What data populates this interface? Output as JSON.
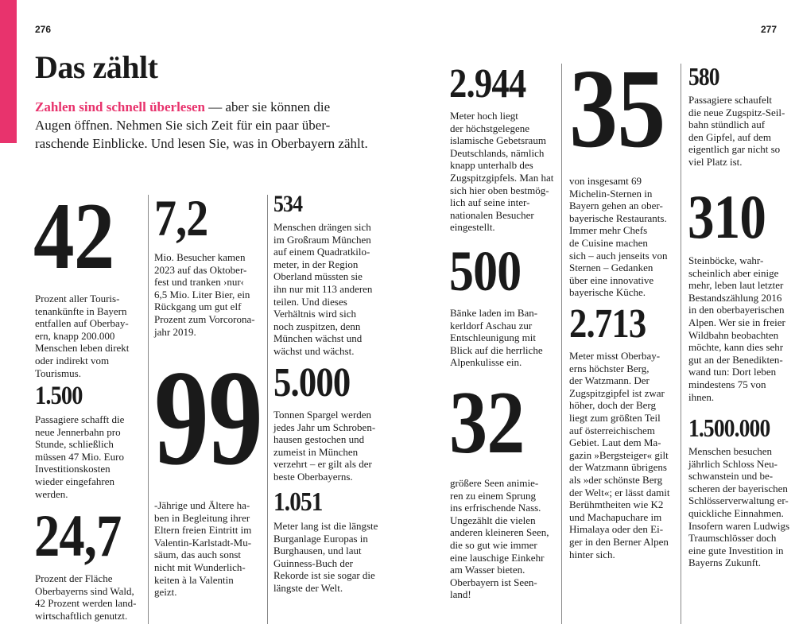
{
  "page_left": "276",
  "page_right": "277",
  "accent_color": "#e8336d",
  "title": "Das zählt",
  "intro": {
    "lead": "Zahlen sind schnell überlesen",
    "rest": " — aber sie können die\nAugen öffnen. Nehmen Sie sich Zeit für ein paar über-\nraschende Einblicke. Und lesen Sie, was in Oberbayern zählt."
  },
  "facts": [
    {
      "number": "42",
      "text": "Prozent aller Touris-\ntenankünfte in Bayern\nentfallen auf Oberbay-\nern, knapp 200.000\nMenschen leben direkt\noder indirekt vom\nTourismus."
    },
    {
      "number": "1.500",
      "text": "Passagiere schafft die\nneue Jennerbahn pro\nStunde, schließlich\nmüssen 47 Mio. Euro\nInvestitionskosten\nwieder eingefahren\nwerden."
    },
    {
      "number": "24,7",
      "text": "Prozent der Fläche\nOberbayerns sind Wald,\n42 Prozent werden land-\nwirtschaftlich genutzt."
    },
    {
      "number": "7,2",
      "text": "Mio. Besucher kamen\n2023 auf das Oktober-\nfest und tranken ›nur‹\n6,5 Mio. Liter Bier, ein\nRückgang um gut elf\nProzent zum Vorcorona-\njahr 2019."
    },
    {
      "number": "99",
      "text": "-Jährige und Ältere ha-\nben in Begleitung ihrer\nEltern freien Eintritt im\nValentin-Karlstadt-Mu-\nsäum, das auch sonst\nnicht mit Wunderlich-\nkeiten à la Valentin\ngeizt."
    },
    {
      "number": "534",
      "text": "Menschen drängen sich\nim Großraum München\nauf einem Quadratkilo-\nmeter, in der Region\nOberland müssten sie\nihn nur mit 113 anderen\nteilen. Und dieses\nVerhältnis wird sich\nnoch zuspitzen, denn\nMünchen wächst und\nwächst und wächst."
    },
    {
      "number": "5.000",
      "text": "Tonnen Spargel werden\njedes Jahr um Schroben-\nhausen gestochen und\nzumeist in München\nverzehrt – er gilt als der\nbeste Oberbayerns."
    },
    {
      "number": "1.051",
      "text": "Meter lang ist die längste\nBurganlage Europas in\nBurghausen, und laut\nGuinness-Buch der\nRekorde ist sie sogar die\nlängste der Welt."
    },
    {
      "number": "2.944",
      "text": "Meter hoch liegt\nder höchstgelegene\nislamische Gebetsraum\nDeutschlands, nämlich\nknapp unterhalb des\nZugspitzgipfels. Man hat\nsich hier oben bestmög-\nlich auf seine inter-\nnationalen Besucher\neingestellt."
    },
    {
      "number": "500",
      "text": "Bänke laden im Ban-\nkerldorf Aschau zur\nEntschleunigung mit\nBlick auf die herrliche\nAlpenkulisse ein."
    },
    {
      "number": "32",
      "text": "größere Seen animie-\nren zu einem Sprung\nins erfrischende Nass.\nUngezählt die vielen\nanderen kleineren Seen,\ndie so gut wie immer\neine lauschige Einkehr\nam Wasser bieten.\nOberbayern ist Seen-\nland!"
    },
    {
      "number": "35",
      "text": "von insgesamt 69\nMichelin-Sternen in\nBayern gehen an ober-\nbayerische Restaurants.\nImmer mehr Chefs\nde Cuisine machen\nsich – auch jenseits von\nSternen – Gedanken\nüber eine innovative\nbayerische Küche."
    },
    {
      "number": "2.713",
      "text": "Meter misst Oberbay-\nerns höchster Berg,\nder Watzmann. Der\nZugspitzgipfel ist zwar\nhöher, doch der Berg\nliegt zum größten Teil\nauf österreichischem\nGebiet. Laut dem Ma-\ngazin »Bergsteiger« gilt\nder Watzmann übrigens\nals »der schönste Berg\nder Welt«; er lässt damit\nBerühmtheiten wie K2\nund Machapuchare im\nHimalaya oder den Ei-\nger in den Berner Alpen\nhinter sich."
    },
    {
      "number": "580",
      "text": "Passagiere schaufelt\ndie neue Zugspitz-Seil-\nbahn stündlich auf\nden Gipfel, auf dem\neigentlich gar nicht so\nviel Platz ist."
    },
    {
      "number": "310",
      "text": "Steinböcke, wahr-\nscheinlich aber einige\nmehr, leben laut letzter\nBestandszählung 2016\nin den oberbayerischen\nAlpen. Wer sie in freier\nWildbahn beobachten\nmöchte, kann dies sehr\ngut an der Benedikten-\nwand tun: Dort leben\nmindestens 75 von\nihnen."
    },
    {
      "number": "1.500.000",
      "text": "Menschen besuchen\njährlich Schloss Neu-\nschwanstein und be-\nscheren der bayerischen\nSchlösserverwaltung er-\nquickliche Einnahmen.\nInsofern waren Ludwigs\nTraumschlösser doch\neine gute Investition in\nBayerns Zukunft."
    }
  ]
}
